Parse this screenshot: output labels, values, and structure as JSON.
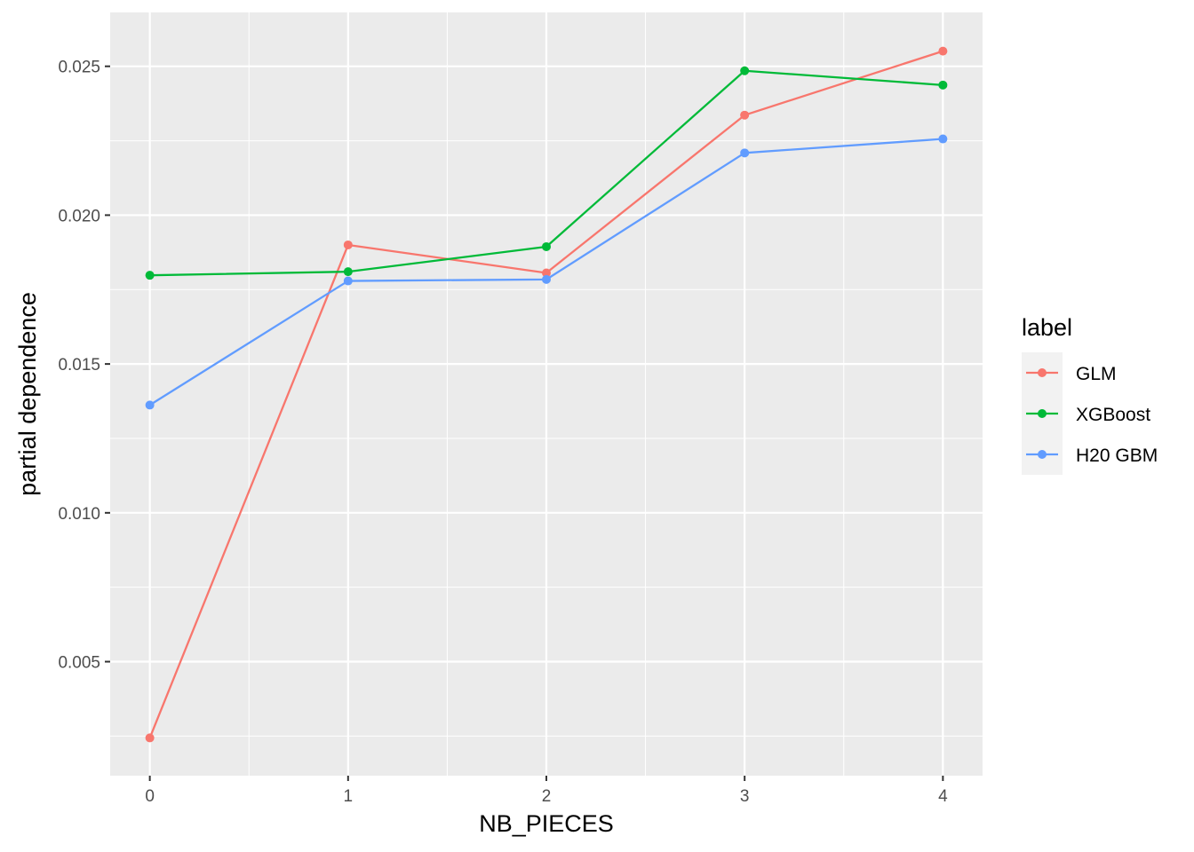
{
  "chart_data": {
    "type": "line",
    "xlabel": "NB_PIECES",
    "ylabel": "partial dependence",
    "x": [
      0,
      1,
      2,
      3,
      4
    ],
    "x_tick_labels": [
      "0",
      "1",
      "2",
      "3",
      "4"
    ],
    "xlim": [
      -0.2,
      4.2
    ],
    "y_ticks": [
      0.005,
      0.01,
      0.015,
      0.02,
      0.025
    ],
    "y_tick_labels": [
      "0.005",
      "0.010",
      "0.015",
      "0.020",
      "0.025"
    ],
    "ylim": [
      0.00117,
      0.02681
    ],
    "grid": true,
    "legend": {
      "title": "label",
      "position": "right"
    },
    "series": [
      {
        "name": "GLM",
        "color": "#F8766D",
        "values": [
          0.00244,
          0.019,
          0.01806,
          0.02336,
          0.02551
        ]
      },
      {
        "name": "XGBoost",
        "color": "#00BA38",
        "values": [
          0.01798,
          0.0181,
          0.01894,
          0.02485,
          0.02437
        ]
      },
      {
        "name": "H20 GBM",
        "color": "#619CFF",
        "values": [
          0.01362,
          0.01779,
          0.01784,
          0.02209,
          0.02256
        ]
      }
    ]
  }
}
